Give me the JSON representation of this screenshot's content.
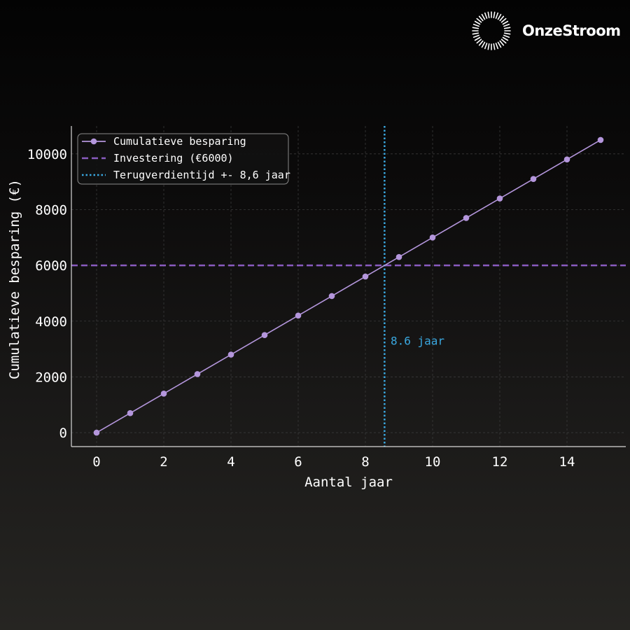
{
  "brand": {
    "name": "OnzeStroom",
    "logo_icon": "sunburst-icon"
  },
  "colors": {
    "series": "#b496dc",
    "investment": "#8a5cc0",
    "payback": "#3aa8e0",
    "grid": "#3a3a3a",
    "axis": "#d8d8d8"
  },
  "chart_data": {
    "type": "line",
    "xlabel": "Aantal jaar",
    "ylabel": "Cumulatieve besparing (€)",
    "xlim": [
      -0.75,
      15.75
    ],
    "ylim": [
      -500,
      11000
    ],
    "xticks": [
      0,
      2,
      4,
      6,
      8,
      10,
      12,
      14
    ],
    "yticks": [
      0,
      2000,
      4000,
      6000,
      8000,
      10000
    ],
    "grid": true,
    "legend_position": "top-left",
    "series": [
      {
        "name": "Cumulatieve besparing",
        "x": [
          0,
          1,
          2,
          3,
          4,
          5,
          6,
          7,
          8,
          9,
          10,
          11,
          12,
          13,
          14,
          15
        ],
        "y": [
          0,
          700,
          1400,
          2100,
          2800,
          3500,
          4200,
          4900,
          5600,
          6300,
          7000,
          7700,
          8400,
          9100,
          9800,
          10500
        ]
      }
    ],
    "hlines": [
      {
        "name": "Investering (€6000)",
        "y": 6000,
        "style": "dashed"
      }
    ],
    "vlines": [
      {
        "name": "Terugverdientijd +- 8,6 jaar",
        "x": 8.57,
        "style": "dotted"
      }
    ],
    "annotations": [
      {
        "text": "8.6 jaar",
        "x": 8.75,
        "y": 3150
      }
    ]
  }
}
